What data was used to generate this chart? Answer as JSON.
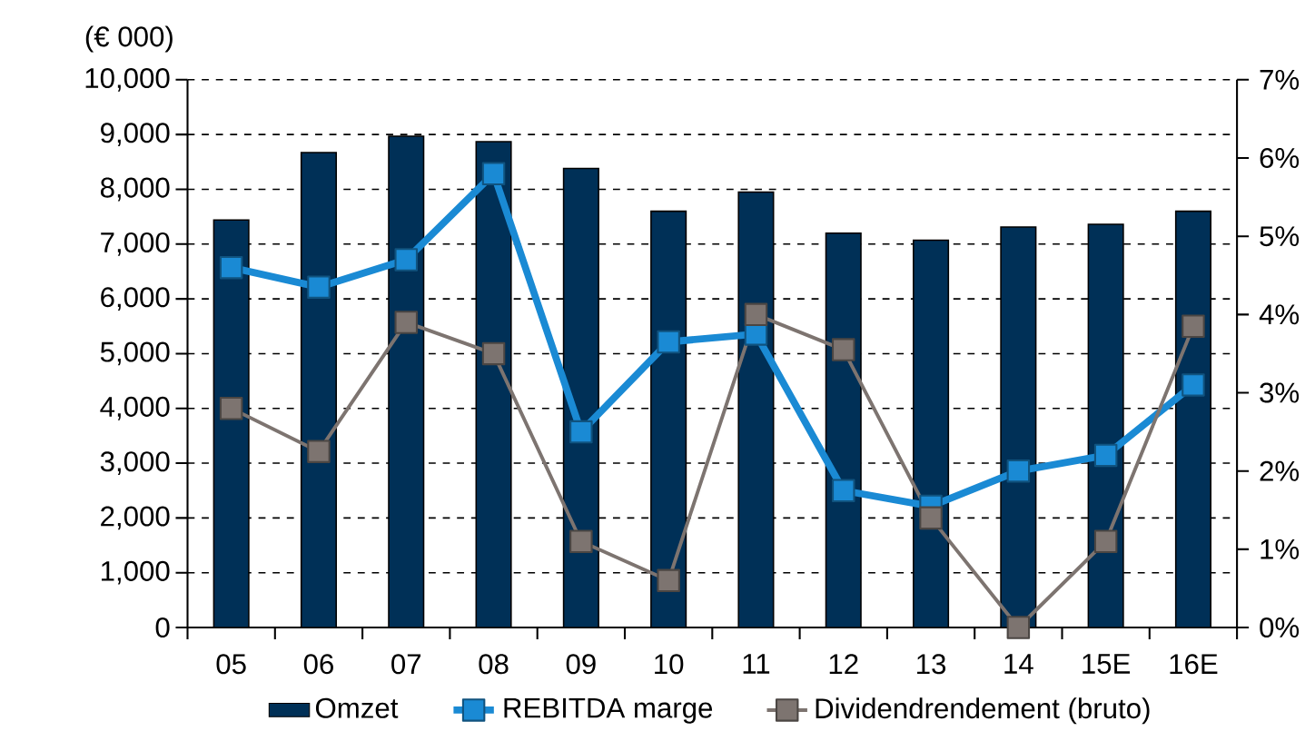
{
  "chart_data": {
    "type": "bar",
    "ylabel": "(€ 000)",
    "categories": [
      "05",
      "06",
      "07",
      "08",
      "09",
      "10",
      "11",
      "12",
      "13",
      "14",
      "15E",
      "16E"
    ],
    "series": [
      {
        "name": "Omzet",
        "color": "#003057",
        "values": [
          7440,
          8670,
          8970,
          8870,
          8380,
          7600,
          7950,
          7200,
          7070,
          7310,
          7360,
          7600
        ]
      },
      {
        "name": "REBITDA marge",
        "type": "line",
        "axis": "y2",
        "color": "#1a8ad4",
        "values": [
          4.6,
          4.35,
          4.7,
          5.8,
          2.5,
          3.65,
          3.75,
          1.75,
          1.55,
          2.0,
          2.2,
          3.1
        ]
      },
      {
        "name": "Dividendrendement (bruto)",
        "type": "line",
        "axis": "y2",
        "color": "#7d7470",
        "values": [
          2.8,
          2.25,
          3.9,
          3.5,
          1.1,
          0.6,
          4.0,
          3.55,
          1.4,
          0.0,
          1.1,
          3.85
        ]
      }
    ],
    "ylim": [
      0,
      10000
    ],
    "yticks": [
      {
        "value": 0,
        "label": "0"
      },
      {
        "value": 1000,
        "label": "1,000"
      },
      {
        "value": 2000,
        "label": "2,000"
      },
      {
        "value": 3000,
        "label": "3,000"
      },
      {
        "value": 4000,
        "label": "4,000"
      },
      {
        "value": 5000,
        "label": "5,000"
      },
      {
        "value": 6000,
        "label": "6,000"
      },
      {
        "value": 7000,
        "label": "7,000"
      },
      {
        "value": 8000,
        "label": "8,000"
      },
      {
        "value": 9000,
        "label": "9,000"
      },
      {
        "value": 10000,
        "label": "10,000"
      }
    ],
    "y2lim": [
      0,
      7
    ],
    "y2ticks": [
      {
        "value": 0,
        "label": "0%"
      },
      {
        "value": 1,
        "label": "1%"
      },
      {
        "value": 2,
        "label": "2%"
      },
      {
        "value": 3,
        "label": "3%"
      },
      {
        "value": 4,
        "label": "4%"
      },
      {
        "value": 5,
        "label": "5%"
      },
      {
        "value": 6,
        "label": "6%"
      },
      {
        "value": 7,
        "label": "7%"
      }
    ],
    "grid": "y",
    "legend": "bottom",
    "marker": "square",
    "line_style": "solid"
  }
}
